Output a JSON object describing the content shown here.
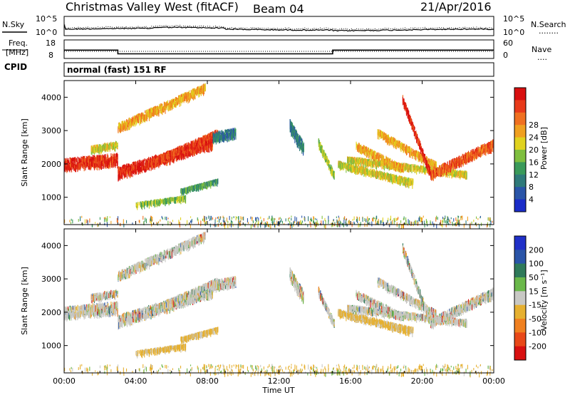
{
  "header": {
    "title": "Christmas Valley West (fitACF)",
    "beam": "Beam 04",
    "date": "21/Apr/2016"
  },
  "noise_panel": {
    "left_label": "N.Sky",
    "left_ticks": [
      "10^5",
      "10^0"
    ],
    "right_ticks": [
      "10^5",
      "10^0"
    ],
    "right_label": "N.Search",
    "right_legend": "........"
  },
  "freq_panel": {
    "left_label_1": "Freq.",
    "left_label_2": "[MHz]",
    "left_ticks": [
      "18",
      "8"
    ],
    "right_ticks": [
      "60",
      "0"
    ],
    "right_label": "Nave",
    "right_legend": "....",
    "freq_segments": [
      {
        "t0": 0.0,
        "t1": 3.0,
        "freq": 12.5
      },
      {
        "t0": 3.0,
        "t1": 15.0,
        "freq": 10.5
      },
      {
        "t0": 15.0,
        "t1": 24.0,
        "freq": 12.5
      }
    ],
    "nave_level": 23
  },
  "cpid": {
    "label": "CPID",
    "text": "normal (fast) 151 RF"
  },
  "power_panel": {
    "ylabel": "Slant Range [km]",
    "yticks": [
      "1000",
      "2000",
      "3000",
      "4000"
    ],
    "colorbar_label": "Power [dB]",
    "colorbar_ticks": [
      "4",
      "8",
      "12",
      "16",
      "20",
      "24",
      "28"
    ],
    "colors": [
      "#1a2cc8",
      "#2a55a8",
      "#2f7a7a",
      "#3a9a5a",
      "#7fbf3f",
      "#e0d21f",
      "#f0a020",
      "#f07020",
      "#e83a1a",
      "#d80f0f"
    ]
  },
  "velocity_panel": {
    "ylabel": "Slant Range [km]",
    "yticks": [
      "1000",
      "2000",
      "3000",
      "4000"
    ],
    "colorbar_label": "Velocity [m s⁻¹]",
    "colorbar_ticks": [
      "200",
      "100",
      "50",
      "15",
      "-15",
      "-50",
      "-100",
      "-200"
    ],
    "colors": [
      "#2030c8",
      "#2a55a8",
      "#2f7a5a",
      "#6ab84a",
      "#c8c8c4",
      "#e6b030",
      "#f08020",
      "#e84818",
      "#d81010"
    ]
  },
  "x_axis": {
    "label": "Time UT",
    "ticks": [
      "00:00",
      "04:00",
      "08:00",
      "12:00",
      "16:00",
      "20:00",
      "00:00"
    ]
  },
  "chart_data": {
    "type": "heatmap",
    "title": "Christmas Valley West (fitACF)",
    "xlabel": "Time UT",
    "ylabel": "Slant Range [km]",
    "xlim": [
      0,
      24
    ],
    "ylim": [
      180,
      4500
    ],
    "power_bands": [
      {
        "t0": 0.0,
        "r0": 2050,
        "t1": 3.0,
        "r1": 2200,
        "width": 280,
        "level": 8.5
      },
      {
        "t0": 1.5,
        "r0": 2500,
        "t1": 3.0,
        "r1": 2650,
        "width": 120,
        "level": 5
      },
      {
        "t0": 3.0,
        "r0": 3150,
        "t1": 7.9,
        "r1": 4350,
        "width": 180,
        "level": 6
      },
      {
        "t0": 3.0,
        "r0": 1800,
        "t1": 8.3,
        "r1": 2700,
        "width": 260,
        "level": 8.5
      },
      {
        "t0": 4.6,
        "r0": 2050,
        "t1": 8.6,
        "r1": 3000,
        "width": 130,
        "level": 8
      },
      {
        "t0": 8.3,
        "r0": 2850,
        "t1": 9.6,
        "r1": 3000,
        "width": 220,
        "level": 2
      },
      {
        "t0": 4.0,
        "r0": 830,
        "t1": 6.8,
        "r1": 1050,
        "width": 60,
        "level": 4
      },
      {
        "t0": 6.5,
        "r0": 1250,
        "t1": 8.6,
        "r1": 1550,
        "width": 50,
        "level": 3
      },
      {
        "t0": 12.6,
        "r0": 3200,
        "t1": 13.4,
        "r1": 2500,
        "width": 300,
        "level": 2
      },
      {
        "t0": 14.2,
        "r0": 2700,
        "t1": 15.1,
        "r1": 1700,
        "width": 150,
        "level": 4
      },
      {
        "t0": 15.3,
        "r0": 2050,
        "t1": 19.5,
        "r1": 1500,
        "width": 120,
        "level": 5
      },
      {
        "t0": 15.8,
        "r0": 2200,
        "t1": 22.5,
        "r1": 1750,
        "width": 100,
        "level": 5
      },
      {
        "t0": 16.3,
        "r0": 2600,
        "t1": 19.0,
        "r1": 1900,
        "width": 150,
        "level": 6
      },
      {
        "t0": 17.5,
        "r0": 3000,
        "t1": 20.8,
        "r1": 2000,
        "width": 140,
        "level": 6
      },
      {
        "t0": 18.9,
        "r0": 4000,
        "t1": 20.5,
        "r1": 1700,
        "width": 160,
        "level": 8.5
      },
      {
        "t0": 20.5,
        "r0": 1750,
        "t1": 24.0,
        "r1": 2650,
        "width": 220,
        "level": 7.5
      }
    ],
    "ground_scatter_range": [
      180,
      450
    ]
  }
}
